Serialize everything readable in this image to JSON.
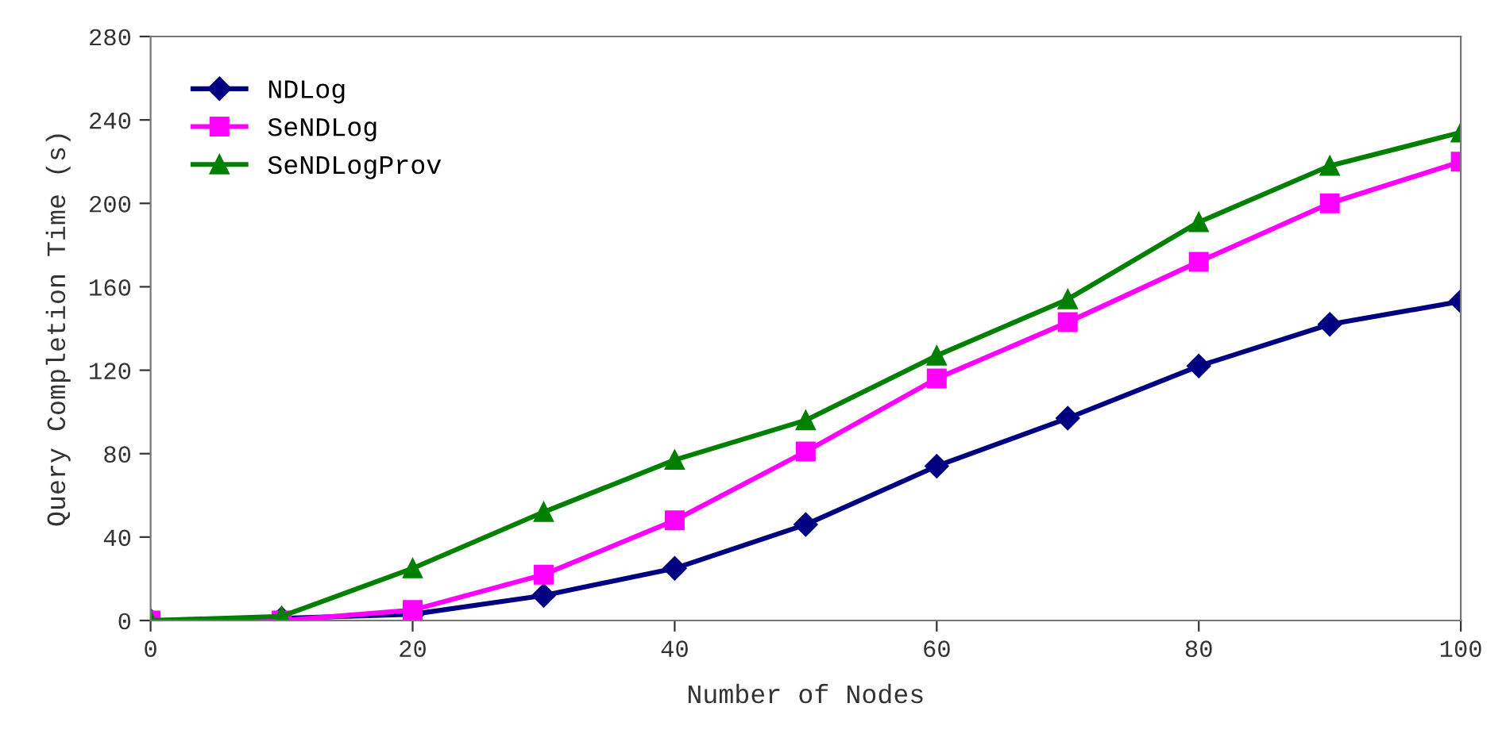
{
  "chart_data": {
    "type": "line",
    "xlabel": "Number of Nodes",
    "ylabel": "Query Completion Time (s)",
    "x": [
      0,
      10,
      20,
      30,
      40,
      50,
      60,
      70,
      80,
      90,
      100
    ],
    "xlim": [
      0,
      100
    ],
    "xticks": [
      0,
      20,
      40,
      60,
      80,
      100
    ],
    "ylim": [
      0,
      280
    ],
    "yticks": [
      0,
      40,
      80,
      120,
      160,
      200,
      240,
      280
    ],
    "grid": false,
    "legend": "top left",
    "line_style": "solid",
    "series": [
      {
        "name": "NDLog",
        "color": "#000080",
        "marker": "diamond",
        "values": [
          0,
          1,
          3,
          12,
          25,
          46,
          74,
          97,
          122,
          142,
          153
        ]
      },
      {
        "name": "SeNDLog",
        "color": "#ff00ff",
        "marker": "square",
        "values": [
          0,
          0,
          5,
          22,
          48,
          81,
          116,
          143,
          172,
          200,
          220
        ]
      },
      {
        "name": "SeNDLogProv",
        "color": "#008000",
        "marker": "triangle",
        "values": [
          0,
          2,
          25,
          52,
          77,
          96,
          127,
          154,
          191,
          218,
          234
        ]
      }
    ]
  }
}
